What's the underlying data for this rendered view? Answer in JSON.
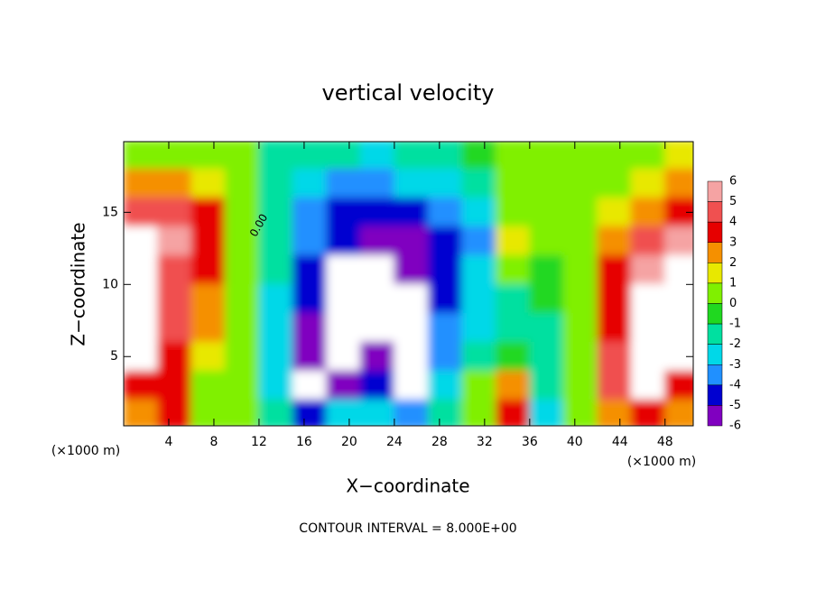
{
  "chart_data": {
    "type": "heatmap",
    "title": "vertical velocity",
    "x_label": "X−coordinate",
    "y_label": "Z−coordinate",
    "x_unit_label": "(×1000 m)",
    "x_unit_label_right": "(×1000 m)",
    "footer": "CONTOUR INTERVAL = 8.000E+00",
    "contour_label": "0.00",
    "x": [
      1.5,
      4.5,
      7.5,
      10.5,
      13.5,
      16.5,
      19.5,
      22.5,
      25.5,
      28.5,
      31.5,
      34.5,
      37.5,
      40.5,
      43.5,
      46.5,
      49.5
    ],
    "z": [
      19,
      17,
      15,
      13,
      11,
      9,
      7,
      5,
      3,
      1
    ],
    "values": [
      [
        1,
        1,
        0.5,
        0.5,
        -1,
        -1.5,
        -1.5,
        -2,
        -1.5,
        -1,
        -0.5,
        0.5,
        0.5,
        0.5,
        1,
        1,
        2
      ],
      [
        3,
        3,
        2,
        0.5,
        -1,
        -2,
        -3,
        -3,
        -2.5,
        -2,
        -1,
        0.5,
        0.5,
        0.5,
        1,
        2,
        3
      ],
      [
        5,
        5,
        3.5,
        0.5,
        -1,
        -3,
        -4,
        -4,
        -4,
        -3.5,
        -2,
        0.5,
        0.5,
        0.5,
        2,
        3,
        4
      ],
      [
        7,
        6,
        4,
        0.5,
        -1,
        -3,
        -4.5,
        -5,
        -5,
        -4.5,
        -3,
        1.5,
        0.5,
        0.5,
        3,
        5,
        6
      ],
      [
        7,
        5,
        4,
        1,
        -1.5,
        -4,
        -7,
        -7,
        -5,
        -4,
        -2,
        0.5,
        0,
        0.5,
        4,
        6,
        7
      ],
      [
        7,
        5,
        3,
        1,
        -2,
        -4,
        -7,
        -7,
        -7,
        -4,
        -2,
        -1,
        -0.5,
        0.5,
        4,
        7,
        7
      ],
      [
        7,
        5,
        3,
        1,
        -2,
        -5,
        -7,
        -7,
        -7,
        -3,
        -2,
        -1,
        -1,
        1,
        4,
        7,
        7
      ],
      [
        7,
        4,
        2,
        1,
        -2,
        -5,
        -7,
        -5,
        -7,
        -3,
        -1,
        0,
        -1,
        0.5,
        5,
        7,
        7
      ],
      [
        4,
        4,
        1,
        0.5,
        -2,
        -7,
        -5,
        -4,
        -7,
        -2,
        1,
        3,
        -1,
        0.5,
        5,
        7,
        4
      ],
      [
        3,
        4,
        0.5,
        0.5,
        -1,
        -4,
        -2,
        -2,
        -3,
        -1,
        1,
        4,
        -2,
        1,
        3,
        4,
        3
      ]
    ],
    "xlim": [
      0,
      50.5
    ],
    "ylim": [
      0.2,
      19.9
    ],
    "xticks": [
      4,
      8,
      12,
      16,
      20,
      24,
      28,
      32,
      36,
      40,
      44,
      48
    ],
    "yticks": [
      5,
      10,
      15
    ],
    "colorbar": {
      "levels": [
        6,
        5,
        4,
        3,
        2,
        1,
        0,
        -1,
        -2,
        -3,
        -4,
        -5,
        -6
      ],
      "colors": [
        "#f5a3a3",
        "#f05050",
        "#e60000",
        "#f59000",
        "#e8e800",
        "#80f000",
        "#20d820",
        "#00e0a0",
        "#00d8e8",
        "#2090ff",
        "#0000d0",
        "#8000c0"
      ]
    }
  }
}
